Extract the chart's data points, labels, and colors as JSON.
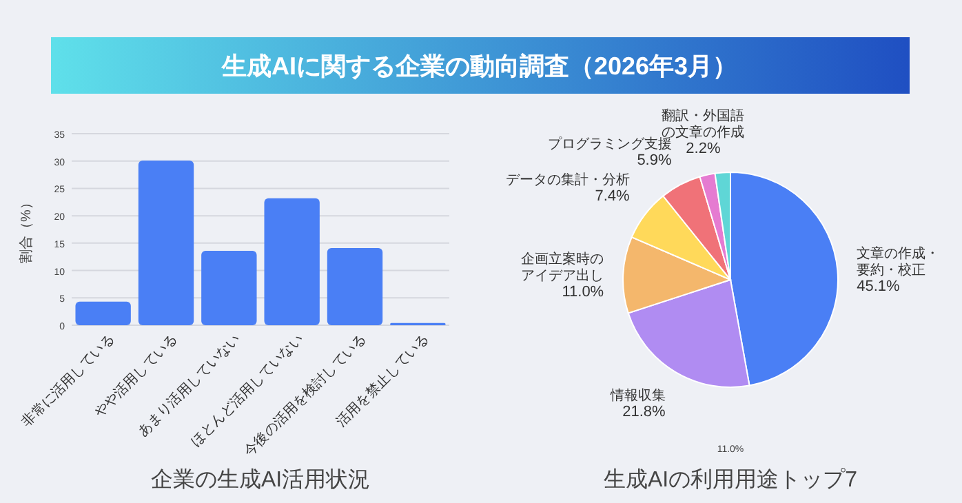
{
  "chart_data": [
    {
      "type": "other",
      "title": "生成AIに関する企業の動向調査（2026年3月）"
    },
    {
      "type": "bar",
      "title": "企業の生成AI活用状況",
      "ylabel": "割合（%）",
      "categories": [
        "非常に活用している",
        "やや活用している",
        "あまり活用していない",
        "ほとんど活用していない",
        "今後の活用を検討している",
        "活用を禁止している"
      ],
      "values": [
        4.3,
        30.1,
        13.6,
        23.2,
        14.1,
        0.4
      ],
      "color": "#4a7ff5",
      "ylim": [
        0,
        35
      ],
      "yticks": [
        0,
        5,
        10,
        15,
        20,
        25,
        30,
        35
      ],
      "grid": "y"
    },
    {
      "type": "pie",
      "title": "生成AIの利用用途トップ7",
      "categories": [
        "文章の作成・要約・校正",
        "情報収集",
        "企画立案時のアイデア出し",
        "データの集計・分析",
        "プログラミング支援",
        "翻訳・外国語の文章の作成",
        null
      ],
      "values": [
        45.1,
        21.8,
        11.0,
        7.4,
        5.9,
        2.2,
        2.2
      ],
      "colors": [
        "#4a7ff5",
        "#b08cf2",
        "#f4b76c",
        "#ffd95a",
        "#f07278",
        "#e57bd1",
        "#5fd6d6"
      ],
      "value_labels": [
        "45.1%",
        "21.8%",
        "11.0%",
        "7.4%",
        "5.9%",
        "2.2%",
        null
      ],
      "annotations": [
        "11.0%"
      ]
    }
  ]
}
